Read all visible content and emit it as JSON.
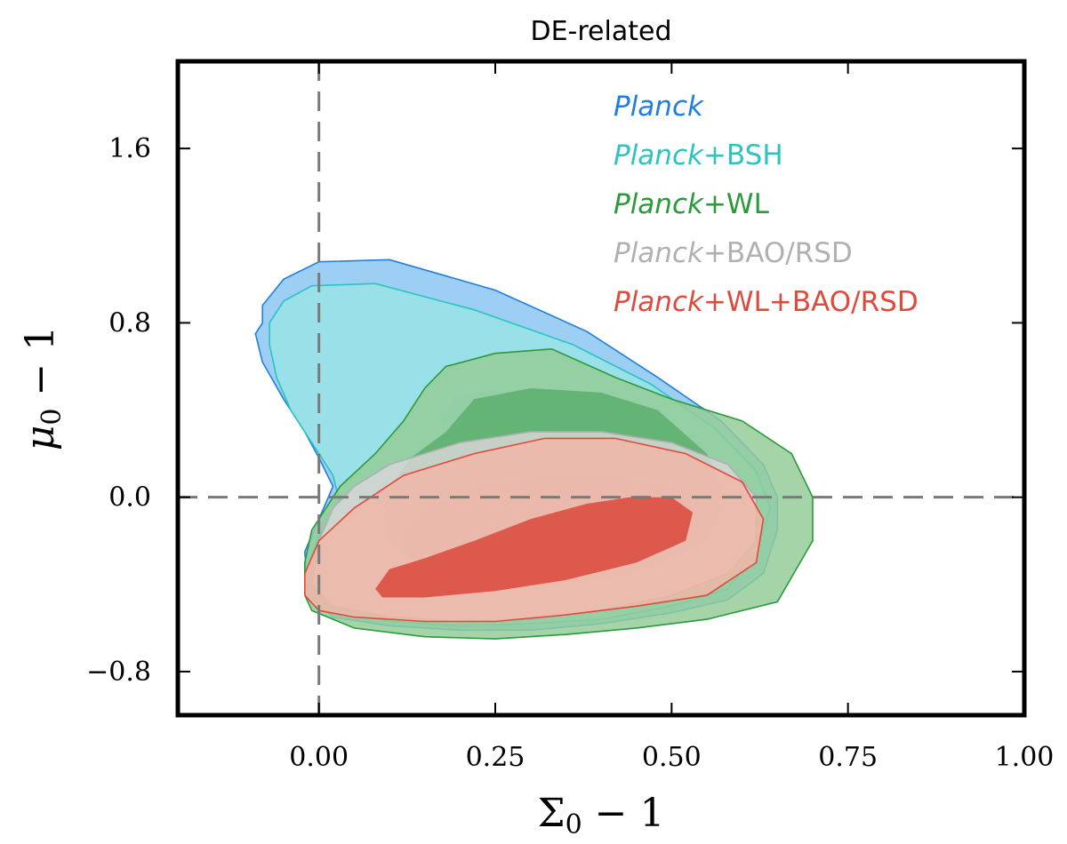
{
  "chart_data": {
    "type": "contour",
    "title": "DE-related",
    "xlabel": {
      "base": "Σ",
      "sub": "0",
      "rest": " − 1"
    },
    "ylabel": {
      "base": "μ",
      "sub": "0",
      "rest": " − 1"
    },
    "xlim": [
      -0.2,
      1.0
    ],
    "ylim": [
      -1.0,
      2.0
    ],
    "x_ticks": [
      {
        "value": 0.0,
        "label": "0.00"
      },
      {
        "value": 0.25,
        "label": "0.25"
      },
      {
        "value": 0.5,
        "label": "0.50"
      },
      {
        "value": 0.75,
        "label": "0.75"
      },
      {
        "value": 1.0,
        "label": "1.00"
      }
    ],
    "y_ticks": [
      {
        "value": -0.8,
        "label": "−0.8"
      },
      {
        "value": 0.0,
        "label": "0.0"
      },
      {
        "value": 0.8,
        "label": "0.8"
      },
      {
        "value": 1.6,
        "label": "1.6"
      }
    ],
    "reference_lines": {
      "x": 0.0,
      "y": 0.0
    },
    "series": [
      {
        "name": "Planck",
        "legend": {
          "italic": "Planck",
          "rest": ""
        },
        "color": "#1f7fe0",
        "fill68": "#4aa0ec",
        "fill95": "#8cc6f2",
        "outer95": [
          [
            -0.08,
            0.8
          ],
          [
            -0.09,
            0.75
          ],
          [
            -0.08,
            0.62
          ],
          [
            -0.05,
            0.45
          ],
          [
            -0.02,
            0.3
          ],
          [
            0.0,
            0.18
          ],
          [
            0.02,
            0.05
          ],
          [
            0.0,
            -0.1
          ],
          [
            -0.02,
            -0.25
          ],
          [
            -0.015,
            -0.45
          ],
          [
            0.02,
            -0.55
          ],
          [
            0.1,
            -0.59
          ],
          [
            0.2,
            -0.61
          ],
          [
            0.3,
            -0.61
          ],
          [
            0.4,
            -0.58
          ],
          [
            0.5,
            -0.53
          ],
          [
            0.58,
            -0.47
          ],
          [
            0.63,
            -0.35
          ],
          [
            0.65,
            -0.15
          ],
          [
            0.65,
            0.0
          ],
          [
            0.63,
            0.15
          ],
          [
            0.57,
            0.35
          ],
          [
            0.48,
            0.55
          ],
          [
            0.38,
            0.76
          ],
          [
            0.25,
            0.95
          ],
          [
            0.1,
            1.09
          ],
          [
            0.0,
            1.08
          ],
          [
            -0.05,
            1.0
          ],
          [
            -0.08,
            0.88
          ]
        ],
        "inner68": [
          [
            0.17,
            0.35
          ],
          [
            0.22,
            0.25
          ],
          [
            0.3,
            0.2
          ],
          [
            0.36,
            0.3
          ],
          [
            0.33,
            0.43
          ],
          [
            0.25,
            0.5
          ],
          [
            0.19,
            0.45
          ]
        ]
      },
      {
        "name": "Planck+BSH",
        "legend": {
          "italic": "Planck",
          "rest": "+BSH"
        },
        "color": "#2cc3c0",
        "fill68": "#52d0ce",
        "fill95": "#9ae3e6",
        "outer95": [
          [
            -0.07,
            0.7
          ],
          [
            -0.06,
            0.55
          ],
          [
            -0.04,
            0.4
          ],
          [
            -0.01,
            0.25
          ],
          [
            0.02,
            0.1
          ],
          [
            0.03,
            -0.03
          ],
          [
            0.0,
            -0.18
          ],
          [
            -0.02,
            -0.35
          ],
          [
            0.01,
            -0.5
          ],
          [
            0.1,
            -0.57
          ],
          [
            0.2,
            -0.59
          ],
          [
            0.3,
            -0.58
          ],
          [
            0.4,
            -0.56
          ],
          [
            0.5,
            -0.5
          ],
          [
            0.58,
            -0.42
          ],
          [
            0.62,
            -0.25
          ],
          [
            0.64,
            -0.05
          ],
          [
            0.62,
            0.12
          ],
          [
            0.56,
            0.32
          ],
          [
            0.47,
            0.52
          ],
          [
            0.36,
            0.7
          ],
          [
            0.22,
            0.86
          ],
          [
            0.08,
            0.98
          ],
          [
            -0.01,
            0.97
          ],
          [
            -0.05,
            0.9
          ],
          [
            -0.07,
            0.8
          ]
        ],
        "inner68": []
      },
      {
        "name": "Planck+WL",
        "legend": {
          "italic": "Planck",
          "rest": "+WL"
        },
        "color": "#2a9a3a",
        "fill68": "#5cb06c",
        "fill95": "#94cd99",
        "outer95": [
          [
            -0.02,
            -0.45
          ],
          [
            -0.01,
            -0.52
          ],
          [
            0.05,
            -0.6
          ],
          [
            0.15,
            -0.64
          ],
          [
            0.25,
            -0.65
          ],
          [
            0.35,
            -0.63
          ],
          [
            0.45,
            -0.6
          ],
          [
            0.55,
            -0.56
          ],
          [
            0.65,
            -0.48
          ],
          [
            0.7,
            -0.2
          ],
          [
            0.7,
            0.0
          ],
          [
            0.67,
            0.2
          ],
          [
            0.6,
            0.35
          ],
          [
            0.5,
            0.45
          ],
          [
            0.42,
            0.55
          ],
          [
            0.33,
            0.68
          ],
          [
            0.25,
            0.66
          ],
          [
            0.18,
            0.6
          ],
          [
            0.15,
            0.5
          ],
          [
            0.12,
            0.35
          ],
          [
            0.08,
            0.2
          ],
          [
            0.03,
            0.05
          ],
          [
            -0.01,
            -0.15
          ],
          [
            -0.02,
            -0.3
          ]
        ],
        "inner68": [
          [
            0.13,
            0.18
          ],
          [
            0.18,
            0.3
          ],
          [
            0.22,
            0.45
          ],
          [
            0.3,
            0.5
          ],
          [
            0.4,
            0.48
          ],
          [
            0.48,
            0.4
          ],
          [
            0.55,
            0.2
          ],
          [
            0.58,
            0.0
          ],
          [
            0.55,
            -0.2
          ],
          [
            0.45,
            -0.35
          ],
          [
            0.3,
            -0.42
          ],
          [
            0.17,
            -0.38
          ],
          [
            0.1,
            -0.2
          ],
          [
            0.09,
            0.0
          ]
        ]
      },
      {
        "name": "Planck+BAO/RSD",
        "legend": {
          "italic": "Planck",
          "rest": "+BAO/RSD"
        },
        "color": "#b0b0b0",
        "fill68": "#c8c8c8",
        "fill95": "#d6d6d6",
        "outer95": [
          [
            -0.01,
            -0.4
          ],
          [
            0.02,
            -0.5
          ],
          [
            0.1,
            -0.55
          ],
          [
            0.2,
            -0.57
          ],
          [
            0.3,
            -0.56
          ],
          [
            0.4,
            -0.52
          ],
          [
            0.5,
            -0.45
          ],
          [
            0.58,
            -0.35
          ],
          [
            0.62,
            -0.2
          ],
          [
            0.62,
            0.0
          ],
          [
            0.58,
            0.15
          ],
          [
            0.5,
            0.25
          ],
          [
            0.4,
            0.3
          ],
          [
            0.3,
            0.3
          ],
          [
            0.2,
            0.25
          ],
          [
            0.1,
            0.15
          ],
          [
            0.05,
            0.05
          ],
          [
            0.02,
            -0.05
          ],
          [
            0.0,
            -0.2
          ]
        ],
        "inner68": [
          [
            0.12,
            -0.15
          ],
          [
            0.15,
            -0.05
          ],
          [
            0.22,
            0.05
          ],
          [
            0.32,
            0.1
          ],
          [
            0.42,
            0.1
          ],
          [
            0.5,
            0.05
          ],
          [
            0.54,
            -0.05
          ],
          [
            0.52,
            -0.18
          ],
          [
            0.45,
            -0.28
          ],
          [
            0.35,
            -0.35
          ],
          [
            0.25,
            -0.38
          ],
          [
            0.16,
            -0.35
          ],
          [
            0.12,
            -0.25
          ]
        ]
      },
      {
        "name": "Planck+WL+BAO/RSD",
        "legend": {
          "italic": "Planck",
          "rest": "+WL+BAO/RSD"
        },
        "color": "#e04a3c",
        "fill68": "#d9483a",
        "fill95": "#f0b6a7",
        "outer95": [
          [
            -0.02,
            -0.45
          ],
          [
            0.0,
            -0.52
          ],
          [
            0.05,
            -0.55
          ],
          [
            0.15,
            -0.57
          ],
          [
            0.25,
            -0.57
          ],
          [
            0.35,
            -0.54
          ],
          [
            0.45,
            -0.5
          ],
          [
            0.55,
            -0.45
          ],
          [
            0.62,
            -0.3
          ],
          [
            0.63,
            -0.1
          ],
          [
            0.6,
            0.07
          ],
          [
            0.52,
            0.2
          ],
          [
            0.42,
            0.27
          ],
          [
            0.32,
            0.27
          ],
          [
            0.22,
            0.2
          ],
          [
            0.12,
            0.1
          ],
          [
            0.05,
            -0.05
          ],
          [
            0.0,
            -0.2
          ],
          [
            -0.02,
            -0.35
          ]
        ],
        "inner68": [
          [
            0.08,
            -0.42
          ],
          [
            0.1,
            -0.33
          ],
          [
            0.15,
            -0.28
          ],
          [
            0.22,
            -0.2
          ],
          [
            0.3,
            -0.1
          ],
          [
            0.38,
            -0.03
          ],
          [
            0.44,
            0.0
          ],
          [
            0.5,
            0.0
          ],
          [
            0.53,
            -0.07
          ],
          [
            0.52,
            -0.2
          ],
          [
            0.45,
            -0.3
          ],
          [
            0.35,
            -0.38
          ],
          [
            0.25,
            -0.43
          ],
          [
            0.15,
            -0.46
          ],
          [
            0.09,
            -0.46
          ]
        ]
      }
    ]
  }
}
